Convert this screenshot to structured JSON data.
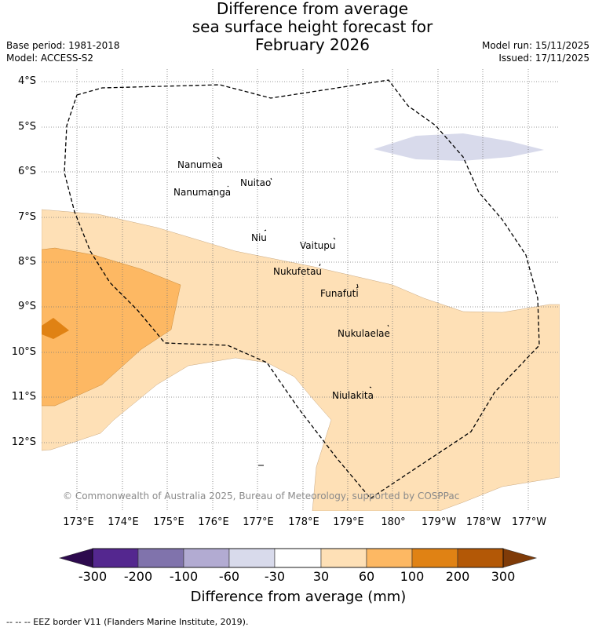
{
  "title": {
    "line1": "Difference from average",
    "line2": "sea surface height forecast for",
    "line3": "February 2026"
  },
  "meta": {
    "base_period": "Base period: 1981-2018",
    "model": "Model: ACCESS-S2",
    "model_run": "Model run: 15/11/2025",
    "issued": "Issued: 17/11/2025"
  },
  "lat_labels": [
    "4°S",
    "5°S",
    "6°S",
    "7°S",
    "8°S",
    "9°S",
    "10°S",
    "11°S",
    "12°S"
  ],
  "lon_labels": [
    "173°E",
    "174°E",
    "175°E",
    "176°E",
    "177°E",
    "178°E",
    "179°E",
    "180°",
    "179°W",
    "178°W",
    "177°W"
  ],
  "places": [
    "Nanumea",
    "Nuitao",
    "Nanumanga",
    "Niu",
    "Vaitupu",
    "Nukufetau",
    "Funafuti",
    "Nukulaelae",
    "Niulakita"
  ],
  "copyright": "© Commonwealth of Australia 2025, Bureau of Meteorology, supported by COSPPac",
  "colorbar": {
    "ticks": [
      "-300",
      "-200",
      "-100",
      "-60",
      "-30",
      "30",
      "60",
      "100",
      "200",
      "300"
    ],
    "colors": [
      "#2d0a4e",
      "#54278f",
      "#8073ac",
      "#b2abd2",
      "#d8daeb",
      "#ffffff",
      "#fee0b6",
      "#fdb863",
      "#e08214",
      "#b35806",
      "#7f3b08"
    ],
    "label": "Difference from average (mm)"
  },
  "legend_footer": "-- -- -- EEZ border V11 (Flanders Marine Institute, 2019)."
}
